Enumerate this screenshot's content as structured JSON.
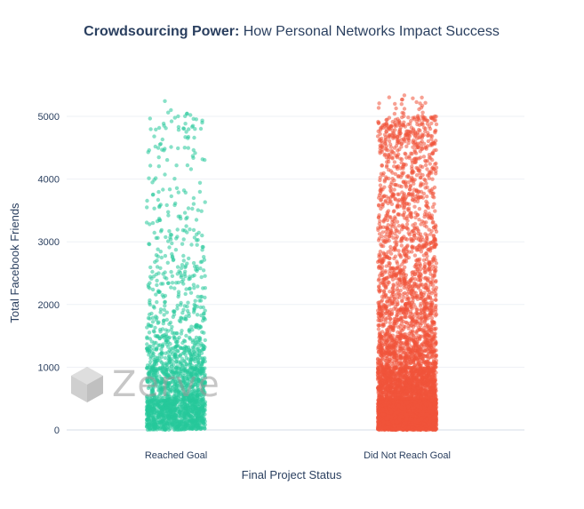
{
  "chart_data": {
    "type": "scatter",
    "title_bold": "Crowdsourcing Power:",
    "title_rest": " How Personal Networks Impact Success",
    "xlabel": "Final Project Status",
    "ylabel": "Total Facebook Friends",
    "categories": [
      "Reached Goal",
      "Did Not Reach Goal"
    ],
    "ylim": [
      0,
      5450
    ],
    "yticks": [
      0,
      1000,
      2000,
      3000,
      4000,
      5000
    ],
    "grid": true,
    "series": [
      {
        "category": "Reached Goal",
        "color": "#26c99a",
        "bins": [
          {
            "from": 0,
            "to": 500,
            "count": 900
          },
          {
            "from": 500,
            "to": 1000,
            "count": 480
          },
          {
            "from": 1000,
            "to": 1500,
            "count": 250
          },
          {
            "from": 1500,
            "to": 2000,
            "count": 110
          },
          {
            "from": 2000,
            "to": 2500,
            "count": 75
          },
          {
            "from": 2500,
            "to": 3000,
            "count": 55
          },
          {
            "from": 3000,
            "to": 3500,
            "count": 45
          },
          {
            "from": 3500,
            "to": 4000,
            "count": 30
          },
          {
            "from": 4000,
            "to": 4500,
            "count": 25
          },
          {
            "from": 4500,
            "to": 5000,
            "count": 35
          },
          {
            "from": 5000,
            "to": 5250,
            "count": 8
          }
        ]
      },
      {
        "category": "Did Not Reach Goal",
        "color": "#f0533a",
        "bins": [
          {
            "from": 0,
            "to": 500,
            "count": 2600
          },
          {
            "from": 500,
            "to": 1000,
            "count": 1100
          },
          {
            "from": 1000,
            "to": 1500,
            "count": 520
          },
          {
            "from": 1500,
            "to": 2000,
            "count": 330
          },
          {
            "from": 2000,
            "to": 2500,
            "count": 260
          },
          {
            "from": 2500,
            "to": 3000,
            "count": 210
          },
          {
            "from": 3000,
            "to": 3500,
            "count": 180
          },
          {
            "from": 3500,
            "to": 4000,
            "count": 160
          },
          {
            "from": 4000,
            "to": 4500,
            "count": 150
          },
          {
            "from": 4500,
            "to": 5000,
            "count": 220
          },
          {
            "from": 5000,
            "to": 5350,
            "count": 25
          }
        ]
      }
    ]
  },
  "watermark": {
    "text": "Zerve",
    "icon": "cube-logo-icon"
  }
}
